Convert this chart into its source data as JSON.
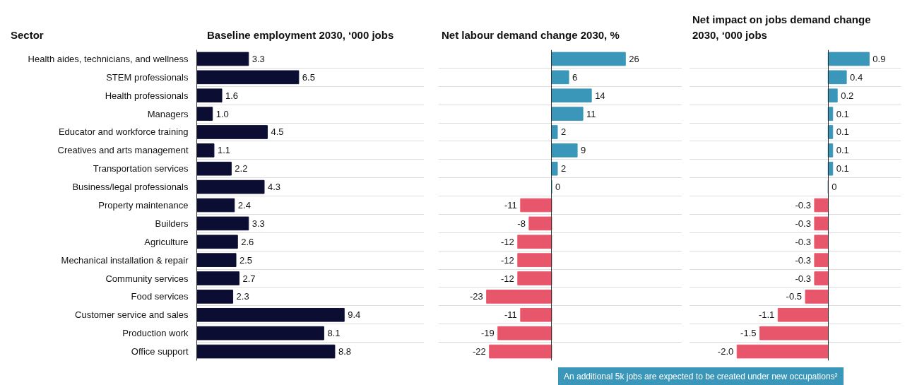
{
  "chart_data": [
    {
      "type": "bar",
      "orientation": "horizontal",
      "title": "Baseline employment 2030, ‘000 jobs",
      "ylabel": "Sector",
      "categories": [
        "Health aides, technicians, and wellness",
        "STEM professionals",
        "Health professionals",
        "Managers",
        "Educator and workforce training",
        "Creatives and arts management",
        "Transportation services",
        "Business/legal professionals",
        "Property maintenance",
        "Builders",
        "Agriculture",
        "Mechanical installation & repair",
        "Community services",
        "Food services",
        "Customer service and sales",
        "Production work",
        "Office support"
      ],
      "values": [
        3.3,
        6.5,
        1.6,
        1.0,
        4.5,
        1.1,
        2.2,
        4.3,
        2.4,
        3.3,
        2.6,
        2.5,
        2.7,
        2.3,
        9.4,
        8.1,
        8.8
      ],
      "value_labels": [
        "3.3",
        "6.5",
        "1.6",
        "1.0",
        "4.5",
        "1.1",
        "2.2",
        "4.3",
        "2.4",
        "3.3",
        "2.6",
        "2.5",
        "2.7",
        "2.3",
        "9.4",
        "8.1",
        "8.8"
      ],
      "colors": [
        "#0b0d33",
        "#0b0d33",
        "#0b0d33",
        "#0b0d33",
        "#0b0d33",
        "#0b0d33",
        "#0b0d33",
        "#0b0d33",
        "#0b0d33",
        "#0b0d33",
        "#0b0d33",
        "#0b0d33",
        "#0b0d33",
        "#0b0d33",
        "#0b0d33",
        "#0b0d33",
        "#0b0d33"
      ],
      "xlim": [
        0,
        14.5
      ],
      "tick_labels": "y",
      "grid": "y"
    },
    {
      "type": "bar",
      "orientation": "horizontal",
      "title": "Net labour demand change 2030, %",
      "categories": [
        null,
        null,
        null,
        null,
        null,
        null,
        null,
        null,
        null,
        null,
        null,
        null,
        null,
        null,
        null,
        null,
        null
      ],
      "values": [
        26,
        6,
        14,
        11,
        2,
        9,
        2,
        0,
        -11,
        -8,
        -12,
        -12,
        -12,
        -23,
        -11,
        -19,
        -22
      ],
      "value_labels": [
        "26",
        "6",
        "14",
        "11",
        "2",
        "9",
        "2",
        "0",
        "-11",
        "-8",
        "-12",
        "-12",
        "-12",
        "-23",
        "-11",
        "-19",
        "-22"
      ],
      "colors": [
        "#3b97b9",
        "#3b97b9",
        "#3b97b9",
        "#3b97b9",
        "#3b97b9",
        "#3b97b9",
        "#3b97b9",
        "#3b97b9",
        "#e8566c",
        "#e8566c",
        "#e8566c",
        "#e8566c",
        "#e8566c",
        "#e8566c",
        "#e8566c",
        "#e8566c",
        "#e8566c"
      ],
      "xlim": [
        -40,
        46
      ],
      "tick_labels": false,
      "grid": "y"
    },
    {
      "type": "bar",
      "orientation": "horizontal",
      "title": "Net impact on jobs demand change 2030, ‘000 jobs",
      "categories": [
        null,
        null,
        null,
        null,
        null,
        null,
        null,
        null,
        null,
        null,
        null,
        null,
        null,
        null,
        null,
        null,
        null
      ],
      "values": [
        0.9,
        0.4,
        0.2,
        0.1,
        0.1,
        0.1,
        0.1,
        0,
        -0.3,
        -0.3,
        -0.3,
        -0.3,
        -0.3,
        -0.5,
        -1.1,
        -1.5,
        -2.0
      ],
      "value_labels": [
        "0.9",
        "0.4",
        "0.2",
        "0.1",
        "0.1",
        "0.1",
        "0.1",
        "0",
        "-0.3",
        "-0.3",
        "-0.3",
        "-0.3",
        "-0.3",
        "-0.5",
        "-1.1",
        "-1.5",
        "-2.0"
      ],
      "colors": [
        "#3b97b9",
        "#3b97b9",
        "#3b97b9",
        "#3b97b9",
        "#3b97b9",
        "#3b97b9",
        "#3b97b9",
        "#3b97b9",
        "#e8566c",
        "#e8566c",
        "#e8566c",
        "#e8566c",
        "#e8566c",
        "#e8566c",
        "#e8566c",
        "#e8566c",
        "#e8566c"
      ],
      "xlim": [
        -3.05,
        1.6
      ],
      "tick_labels": false,
      "grid": "y",
      "annotations": [
        "An additional 5k jobs are expected to be created under new occupations²"
      ]
    }
  ]
}
